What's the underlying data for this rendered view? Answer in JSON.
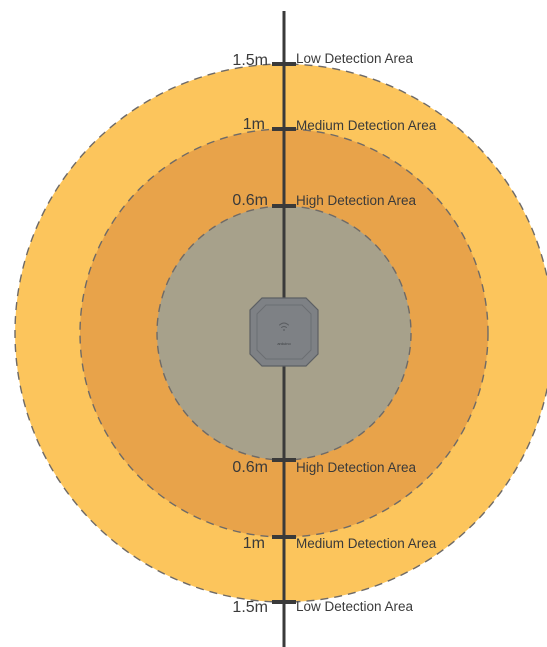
{
  "zones": [
    {
      "level": "low",
      "color": "#fcc55c"
    },
    {
      "level": "medium",
      "color": "#e8a34a"
    },
    {
      "level": "high",
      "color": "#a7a18b"
    }
  ],
  "boundary_style": {
    "color": "#6e6a67",
    "dashed": true
  },
  "axis_color": "#3a3a3a",
  "device": {
    "color": "#7e8185",
    "icon": "wifi-signal-icon",
    "label": "arduino"
  },
  "labels": {
    "top": [
      {
        "distance": "1.5m",
        "area": "Low Detection Area"
      },
      {
        "distance": "1m",
        "area": "Medium Detection Area"
      },
      {
        "distance": "0.6m",
        "area": "High Detection Area"
      }
    ],
    "bottom": [
      {
        "distance": "0.6m",
        "area": "High Detection Area"
      },
      {
        "distance": "1m",
        "area": "Medium Detection Area"
      },
      {
        "distance": "1.5m",
        "area": "Low Detection Area"
      }
    ]
  }
}
